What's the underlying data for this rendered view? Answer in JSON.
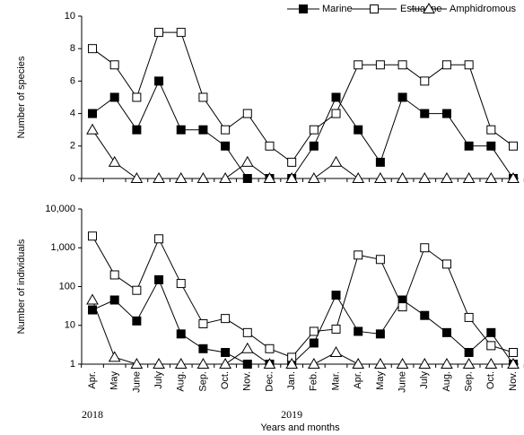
{
  "chart_data": [
    {
      "type": "line",
      "y_label": "Number of species",
      "ylim": [
        0,
        10
      ],
      "yticks": [
        0,
        2,
        4,
        6,
        8,
        10
      ],
      "legend": "top",
      "series": [
        {
          "name": "Marine",
          "color": "#000000",
          "marker": "filled-square",
          "values": [
            4,
            5,
            3,
            6,
            3,
            3,
            2,
            0,
            0,
            0,
            2,
            5,
            3,
            1,
            5,
            4,
            4,
            2,
            2,
            0
          ]
        },
        {
          "name": "Estuarine",
          "color": "#000000",
          "marker": "open-square",
          "values": [
            8,
            7,
            5,
            9,
            9,
            5,
            3,
            4,
            2,
            1,
            3,
            4,
            7,
            7,
            7,
            6,
            7,
            7,
            3,
            2
          ]
        },
        {
          "name": "Amphidromous",
          "color": "#000000",
          "marker": "open-triangle",
          "values": [
            3,
            1,
            0,
            0,
            0,
            0,
            0,
            1,
            0,
            0,
            0,
            1,
            0,
            0,
            0,
            0,
            0,
            0,
            0,
            0
          ]
        }
      ]
    },
    {
      "type": "line",
      "y_label": "Number of individuals",
      "x_label": "Years and months",
      "log": true,
      "ylim": [
        1,
        10000
      ],
      "yticks": [
        1,
        10,
        100,
        {
          "value": 1000,
          "label": "1,000"
        },
        {
          "value": 10000,
          "label": "10,000"
        }
      ],
      "categories": [
        "Apr.",
        "May",
        "June",
        "July",
        "Aug.",
        "Sep.",
        "Oct.",
        "Nov.",
        "Dec.",
        "Jan.",
        "Feb.",
        "Mar.",
        "Apr.",
        "May",
        "June",
        "July",
        "Aug.",
        "Sep.",
        "Oct.",
        "Nov."
      ],
      "year_labels": [
        "2018",
        "2019"
      ],
      "series": [
        {
          "color": "#000000",
          "marker": "filled-square",
          "values": [
            25,
            45,
            13,
            150,
            6,
            2.5,
            2,
            1,
            1,
            1,
            3.5,
            60,
            7,
            6,
            45,
            18,
            6.5,
            2,
            6.5,
            1
          ]
        },
        {
          "color": "#000000",
          "marker": "open-square",
          "values": [
            2000,
            200,
            80,
            1700,
            120,
            11,
            15,
            6.5,
            2.5,
            1.5,
            7,
            8,
            650,
            500,
            30,
            1000,
            380,
            16,
            3,
            2
          ]
        },
        {
          "color": "#000000",
          "marker": "open-triangle",
          "values": [
            45,
            1.5,
            1,
            1,
            1,
            1,
            1,
            2.5,
            1,
            1,
            1,
            2,
            1,
            1,
            1,
            1,
            1,
            1,
            1,
            1
          ]
        }
      ]
    }
  ]
}
